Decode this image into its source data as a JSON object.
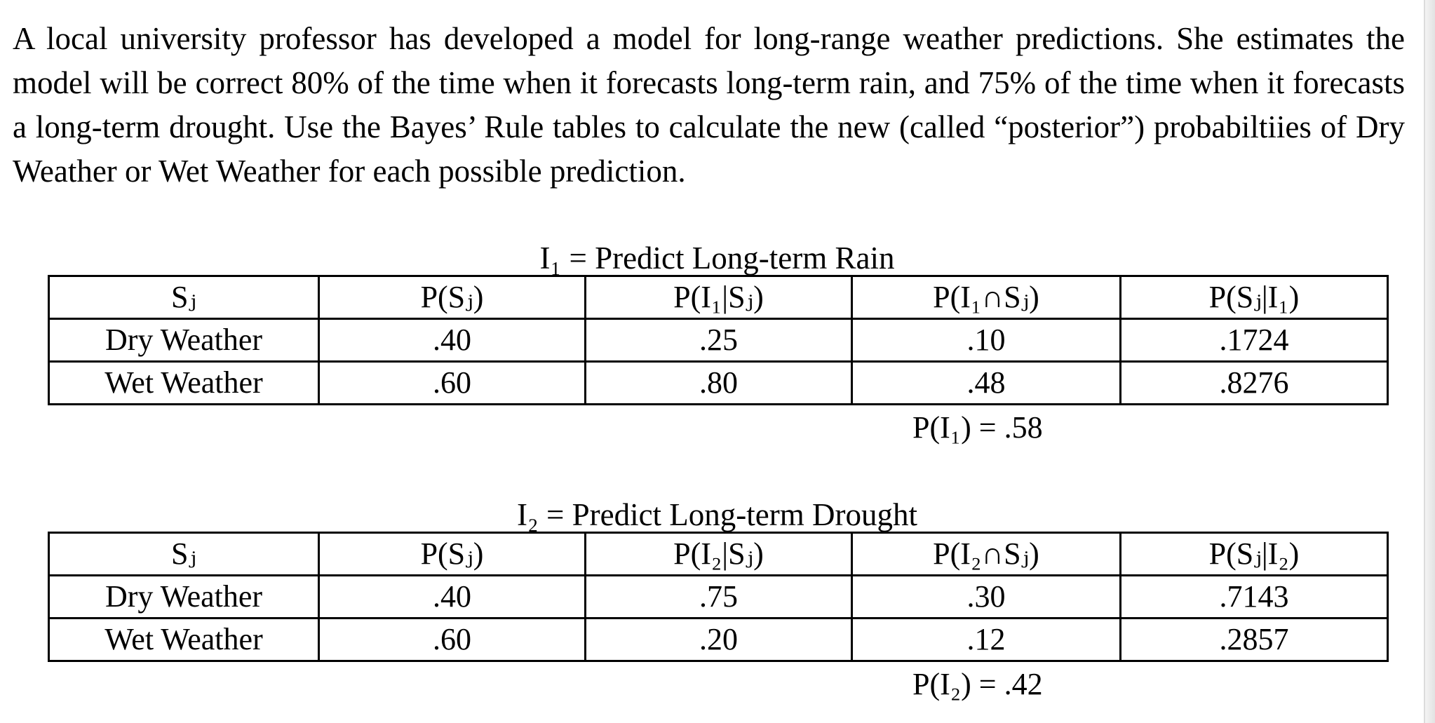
{
  "intro": {
    "paragraph": "A local university professor has developed a model for long-range weather predictions.  She estimates the model will be correct 80% of the time when it forecasts long-term rain, and 75% of the time when it forecasts a long-term drought.  Use the Bayes’ Rule tables to calculate the new (called “posterior”) probabiltiies of Dry Weather or Wet Weather for each possible prediction."
  },
  "tables": [
    {
      "title": "I₁ = Predict Long-term Rain",
      "headers": [
        "Sⱼ",
        "P(Sⱼ)",
        "P(I₁|Sⱼ)",
        "P(I₁∩Sⱼ)",
        "P(Sⱼ|I₁)"
      ],
      "rows": [
        [
          "Dry Weather",
          ".40",
          ".25",
          ".10",
          ".1724"
        ],
        [
          "Wet Weather",
          ".60",
          ".80",
          ".48",
          ".8276"
        ]
      ],
      "total": "P(I₁) = .58"
    },
    {
      "title": "I₂ = Predict Long-term Drought",
      "headers": [
        "Sⱼ",
        "P(Sⱼ)",
        "P(I₂|Sⱼ)",
        "P(I₂∩Sⱼ)",
        "P(Sⱼ|I₂)"
      ],
      "rows": [
        [
          "Dry Weather",
          ".40",
          ".75",
          ".30",
          ".7143"
        ],
        [
          "Wet Weather",
          ".60",
          ".20",
          ".12",
          ".2857"
        ]
      ],
      "total": "P(I₂) = .42"
    }
  ]
}
